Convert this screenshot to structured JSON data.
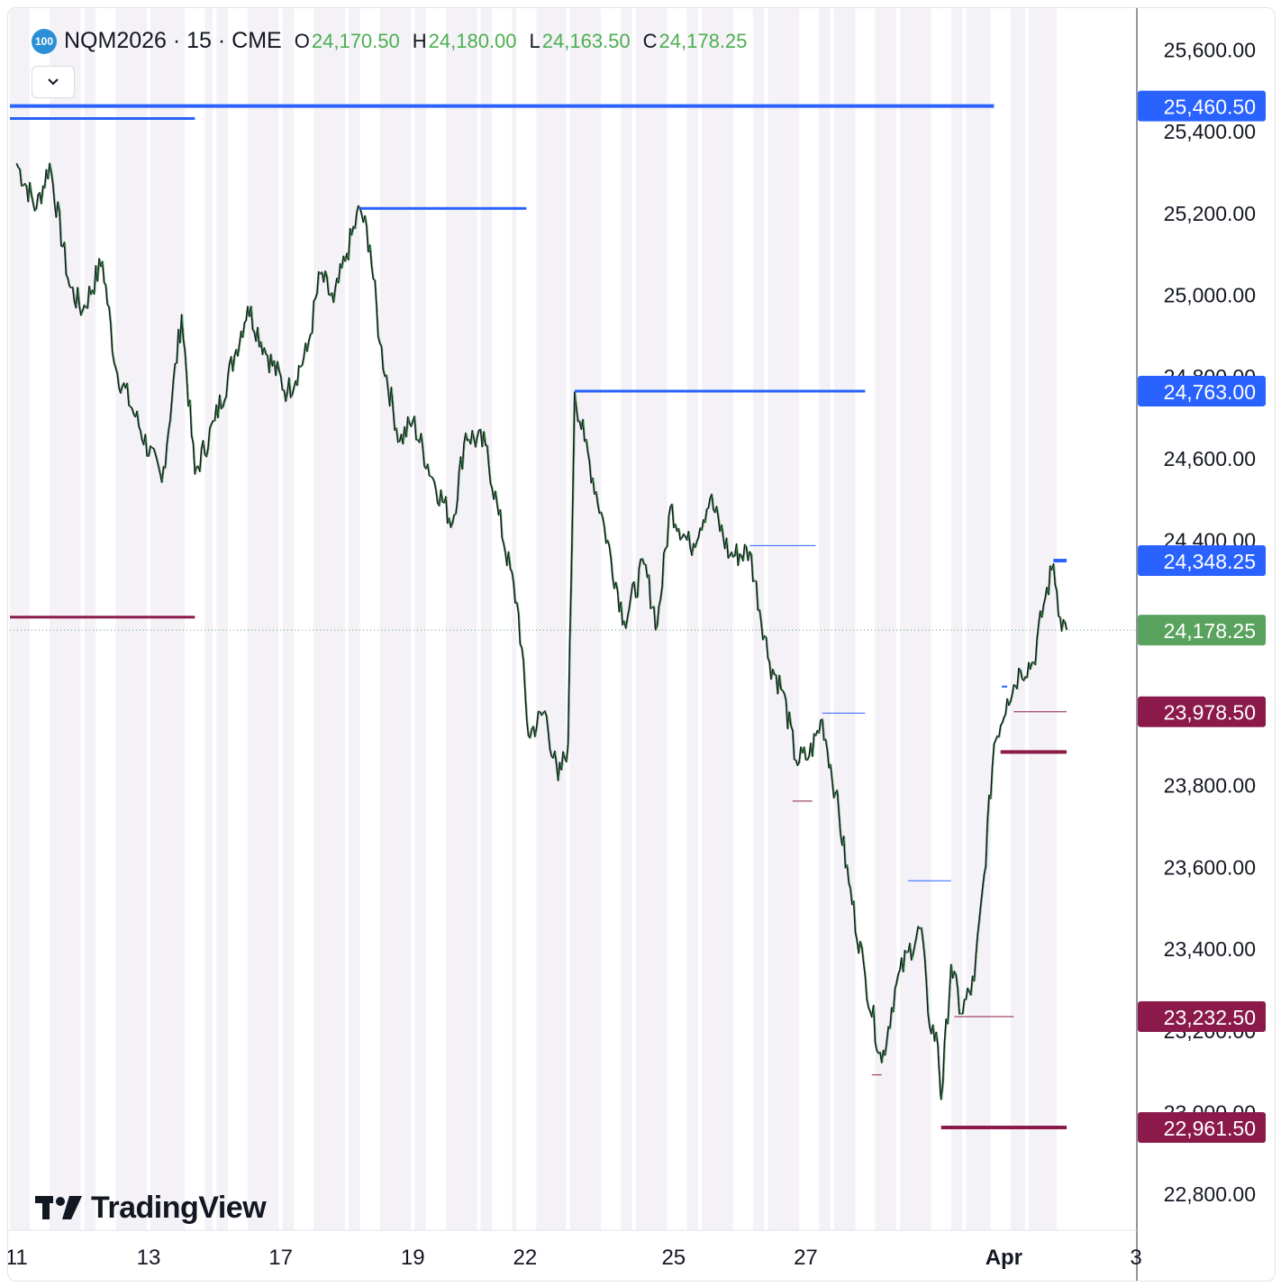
{
  "header": {
    "badge": "100",
    "symbol": "NQM2026 · 15 · CME",
    "ohlc": [
      {
        "key": "O",
        "value": "24,170.50"
      },
      {
        "key": "H",
        "value": "24,180.00"
      },
      {
        "key": "L",
        "value": "24,163.50"
      },
      {
        "key": "C",
        "value": "24,178.25"
      }
    ]
  },
  "brand": {
    "name": "TradingView"
  },
  "colors": {
    "up": "#4caf50",
    "down": "#131722",
    "resistance": "#2962ff",
    "support": "#8b1a4a",
    "last_price": "#5aa35e",
    "session_band": "#f4f2f7"
  },
  "chart_data": {
    "type": "line",
    "instrument": "NQM2026",
    "interval": "15",
    "exchange": "CME",
    "ylim": [
      22710,
      25700
    ],
    "y_ticks": [
      {
        "value": 22800,
        "label": "22,800.00"
      },
      {
        "value": 23000,
        "label": "23,000.00"
      },
      {
        "value": 23200,
        "label": "23,200.00"
      },
      {
        "value": 23400,
        "label": "23,400.00"
      },
      {
        "value": 23600,
        "label": "23,600.00"
      },
      {
        "value": 23800,
        "label": "23,800.00"
      },
      {
        "value": 24000,
        "label": "24,000.00"
      },
      {
        "value": 24200,
        "label": "24,200.00"
      },
      {
        "value": 24400,
        "label": "24,400.00"
      },
      {
        "value": 24600,
        "label": "24,600.00"
      },
      {
        "value": 24800,
        "label": "24,800.00"
      },
      {
        "value": 25000,
        "label": "25,000.00"
      },
      {
        "value": 25200,
        "label": "25,200.00"
      },
      {
        "value": 25400,
        "label": "25,400.00"
      },
      {
        "value": 25600,
        "label": "25,600.00"
      }
    ],
    "x_ticks": [
      {
        "t": 0.0,
        "label": "11"
      },
      {
        "t": 2.0,
        "label": "13"
      },
      {
        "t": 4.0,
        "label": "17"
      },
      {
        "t": 6.0,
        "label": "19"
      },
      {
        "t": 7.7,
        "label": "22"
      },
      {
        "t": 9.95,
        "label": "25"
      },
      {
        "t": 11.95,
        "label": "27"
      },
      {
        "t": 14.95,
        "label": "Apr"
      },
      {
        "t": 16.95,
        "label": "3"
      }
    ],
    "xlim": [
      -0.1,
      16.95
    ],
    "price_path": [
      {
        "t": 0.0,
        "p": 25320
      },
      {
        "t": 0.3,
        "p": 25210
      },
      {
        "t": 0.5,
        "p": 25320
      },
      {
        "t": 0.8,
        "p": 25020
      },
      {
        "t": 1.0,
        "p": 24960
      },
      {
        "t": 1.3,
        "p": 25080
      },
      {
        "t": 1.5,
        "p": 24820
      },
      {
        "t": 1.8,
        "p": 24700
      },
      {
        "t": 2.2,
        "p": 24540
      },
      {
        "t": 2.5,
        "p": 24950
      },
      {
        "t": 2.7,
        "p": 24560
      },
      {
        "t": 3.0,
        "p": 24690
      },
      {
        "t": 3.3,
        "p": 24850
      },
      {
        "t": 3.5,
        "p": 24970
      },
      {
        "t": 3.8,
        "p": 24850
      },
      {
        "t": 4.1,
        "p": 24760
      },
      {
        "t": 4.4,
        "p": 24860
      },
      {
        "t": 4.6,
        "p": 25050
      },
      {
        "t": 4.8,
        "p": 24980
      },
      {
        "t": 5.0,
        "p": 25100
      },
      {
        "t": 5.2,
        "p": 25210
      },
      {
        "t": 5.35,
        "p": 25120
      },
      {
        "t": 5.5,
        "p": 24880
      },
      {
        "t": 5.8,
        "p": 24640
      },
      {
        "t": 6.0,
        "p": 24690
      },
      {
        "t": 6.3,
        "p": 24550
      },
      {
        "t": 6.6,
        "p": 24440
      },
      {
        "t": 6.8,
        "p": 24660
      },
      {
        "t": 7.1,
        "p": 24630
      },
      {
        "t": 7.3,
        "p": 24460
      },
      {
        "t": 7.6,
        "p": 24220
      },
      {
        "t": 7.75,
        "p": 23920
      },
      {
        "t": 8.0,
        "p": 23980
      },
      {
        "t": 8.2,
        "p": 23810
      },
      {
        "t": 8.35,
        "p": 23900
      },
      {
        "t": 8.45,
        "p": 24760
      },
      {
        "t": 8.6,
        "p": 24640
      },
      {
        "t": 8.9,
        "p": 24430
      },
      {
        "t": 9.2,
        "p": 24200
      },
      {
        "t": 9.5,
        "p": 24340
      },
      {
        "t": 9.7,
        "p": 24190
      },
      {
        "t": 9.9,
        "p": 24480
      },
      {
        "t": 10.2,
        "p": 24380
      },
      {
        "t": 10.5,
        "p": 24500
      },
      {
        "t": 10.8,
        "p": 24360
      },
      {
        "t": 11.1,
        "p": 24370
      },
      {
        "t": 11.4,
        "p": 24100
      },
      {
        "t": 11.6,
        "p": 24030
      },
      {
        "t": 11.8,
        "p": 23860
      },
      {
        "t": 12.0,
        "p": 23870
      },
      {
        "t": 12.2,
        "p": 23960
      },
      {
        "t": 12.4,
        "p": 23780
      },
      {
        "t": 12.6,
        "p": 23560
      },
      {
        "t": 12.85,
        "p": 23330
      },
      {
        "t": 13.1,
        "p": 23120
      },
      {
        "t": 13.3,
        "p": 23300
      },
      {
        "t": 13.5,
        "p": 23390
      },
      {
        "t": 13.7,
        "p": 23450
      },
      {
        "t": 13.8,
        "p": 23240
      },
      {
        "t": 13.95,
        "p": 23160
      },
      {
        "t": 14.0,
        "p": 23030
      },
      {
        "t": 14.15,
        "p": 23360
      },
      {
        "t": 14.3,
        "p": 23240
      },
      {
        "t": 14.5,
        "p": 23320
      },
      {
        "t": 14.65,
        "p": 23580
      },
      {
        "t": 14.8,
        "p": 23900
      },
      {
        "t": 15.0,
        "p": 24010
      },
      {
        "t": 15.2,
        "p": 24080
      },
      {
        "t": 15.4,
        "p": 24100
      },
      {
        "t": 15.55,
        "p": 24240
      },
      {
        "t": 15.7,
        "p": 24340
      },
      {
        "t": 15.8,
        "p": 24210
      },
      {
        "t": 15.9,
        "p": 24178.25
      }
    ],
    "levels": [
      {
        "price": 25460.5,
        "label": "25,460.50",
        "kind": "resistance",
        "from": -0.1,
        "to": 14.8,
        "weight": 4
      },
      {
        "price": 25430,
        "kind": "resistance",
        "from": -0.1,
        "to": 2.7,
        "weight": 3
      },
      {
        "price": 25210,
        "kind": "resistance",
        "from": 5.2,
        "to": 7.72,
        "weight": 3
      },
      {
        "price": 24763.0,
        "label": "24,763.00",
        "kind": "resistance",
        "from": 8.45,
        "to": 12.85,
        "weight": 3
      },
      {
        "price": 24348.25,
        "label": "24,348.25",
        "kind": "resistance",
        "from": 15.7,
        "to": 15.9,
        "weight": 4
      },
      {
        "price": 24385,
        "kind": "resistance",
        "from": 11.1,
        "to": 12.1,
        "weight": 1
      },
      {
        "price": 23975,
        "kind": "resistance",
        "from": 12.2,
        "to": 12.85,
        "weight": 1
      },
      {
        "price": 23565,
        "kind": "resistance",
        "from": 13.5,
        "to": 14.15,
        "weight": 1
      },
      {
        "price": 24040,
        "kind": "resistance",
        "from": 14.92,
        "to": 15.0,
        "weight": 2
      },
      {
        "price": 23978.5,
        "label": "23,978.50",
        "kind": "support",
        "from": 15.1,
        "to": 15.9,
        "weight": 1
      },
      {
        "price": 23880,
        "kind": "support",
        "from": 14.9,
        "to": 15.9,
        "weight": 4
      },
      {
        "price": 24210,
        "kind": "support",
        "from": -0.1,
        "to": 2.7,
        "weight": 3
      },
      {
        "price": 23760,
        "kind": "support",
        "from": 11.75,
        "to": 12.05,
        "weight": 1
      },
      {
        "price": 23232.5,
        "label": "23,232.50",
        "kind": "support",
        "from": 14.2,
        "to": 15.1,
        "weight": 1
      },
      {
        "price": 23090,
        "kind": "support",
        "from": 12.95,
        "to": 13.1,
        "weight": 1
      },
      {
        "price": 22961.5,
        "label": "22,961.50",
        "kind": "support",
        "from": 14.0,
        "to": 15.9,
        "weight": 4
      }
    ],
    "last_price": {
      "value": 24178.25,
      "label": "24,178.25"
    },
    "session_breaks": [
      0.35,
      1.0,
      1.35,
      2.0,
      2.7,
      3.0,
      3.35,
      4.0,
      4.35,
      5.0,
      5.35,
      6.0,
      6.35,
      7.0,
      7.35,
      7.7,
      7.72,
      8.35,
      9.0,
      9.35,
      10.0,
      10.35,
      11.0,
      11.35,
      12.0,
      12.35,
      12.85,
      13.35,
      14.0,
      14.35,
      14.9,
      15.3,
      15.9,
      16.0
    ]
  }
}
